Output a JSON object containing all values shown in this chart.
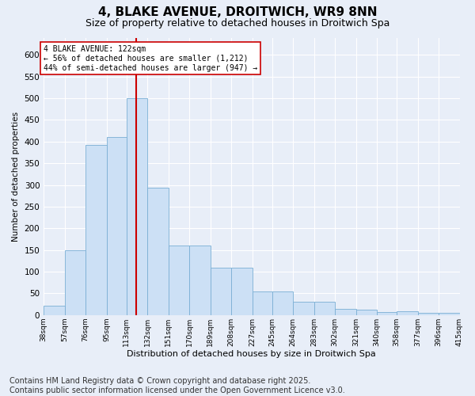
{
  "title1": "4, BLAKE AVENUE, DROITWICH, WR9 8NN",
  "title2": "Size of property relative to detached houses in Droitwich Spa",
  "xlabel": "Distribution of detached houses by size in Droitwich Spa",
  "ylabel": "Number of detached properties",
  "bar_values": [
    22,
    150,
    393,
    411,
    500,
    293,
    160,
    160,
    110,
    110,
    55,
    55,
    30,
    30,
    15,
    12,
    7,
    8,
    5,
    5
  ],
  "bin_edges": [
    38,
    57,
    76,
    95,
    113,
    132,
    151,
    170,
    189,
    208,
    227,
    245,
    264,
    283,
    302,
    321,
    340,
    358,
    377,
    396,
    415
  ],
  "tick_labels": [
    "38sqm",
    "57sqm",
    "76sqm",
    "95sqm",
    "113sqm",
    "132sqm",
    "151sqm",
    "170sqm",
    "189sqm",
    "208sqm",
    "227sqm",
    "245sqm",
    "264sqm",
    "283sqm",
    "302sqm",
    "321sqm",
    "340sqm",
    "358sqm",
    "377sqm",
    "396sqm",
    "415sqm"
  ],
  "bar_color": "#cce0f5",
  "bar_edge_color": "#7aafd4",
  "vline_x": 122,
  "vline_color": "#cc0000",
  "annotation_text": "4 BLAKE AVENUE: 122sqm\n← 56% of detached houses are smaller (1,212)\n44% of semi-detached houses are larger (947) →",
  "annotation_box_color": "#ffffff",
  "annotation_box_edge": "#cc0000",
  "ylim": [
    0,
    640
  ],
  "yticks": [
    0,
    50,
    100,
    150,
    200,
    250,
    300,
    350,
    400,
    450,
    500,
    550,
    600
  ],
  "footnote": "Contains HM Land Registry data © Crown copyright and database right 2025.\nContains public sector information licensed under the Open Government Licence v3.0.",
  "bg_color": "#e8eef8",
  "plot_bg_color": "#e8eef8",
  "grid_color": "#ffffff",
  "title1_fontsize": 11,
  "title2_fontsize": 9,
  "footnote_fontsize": 7
}
